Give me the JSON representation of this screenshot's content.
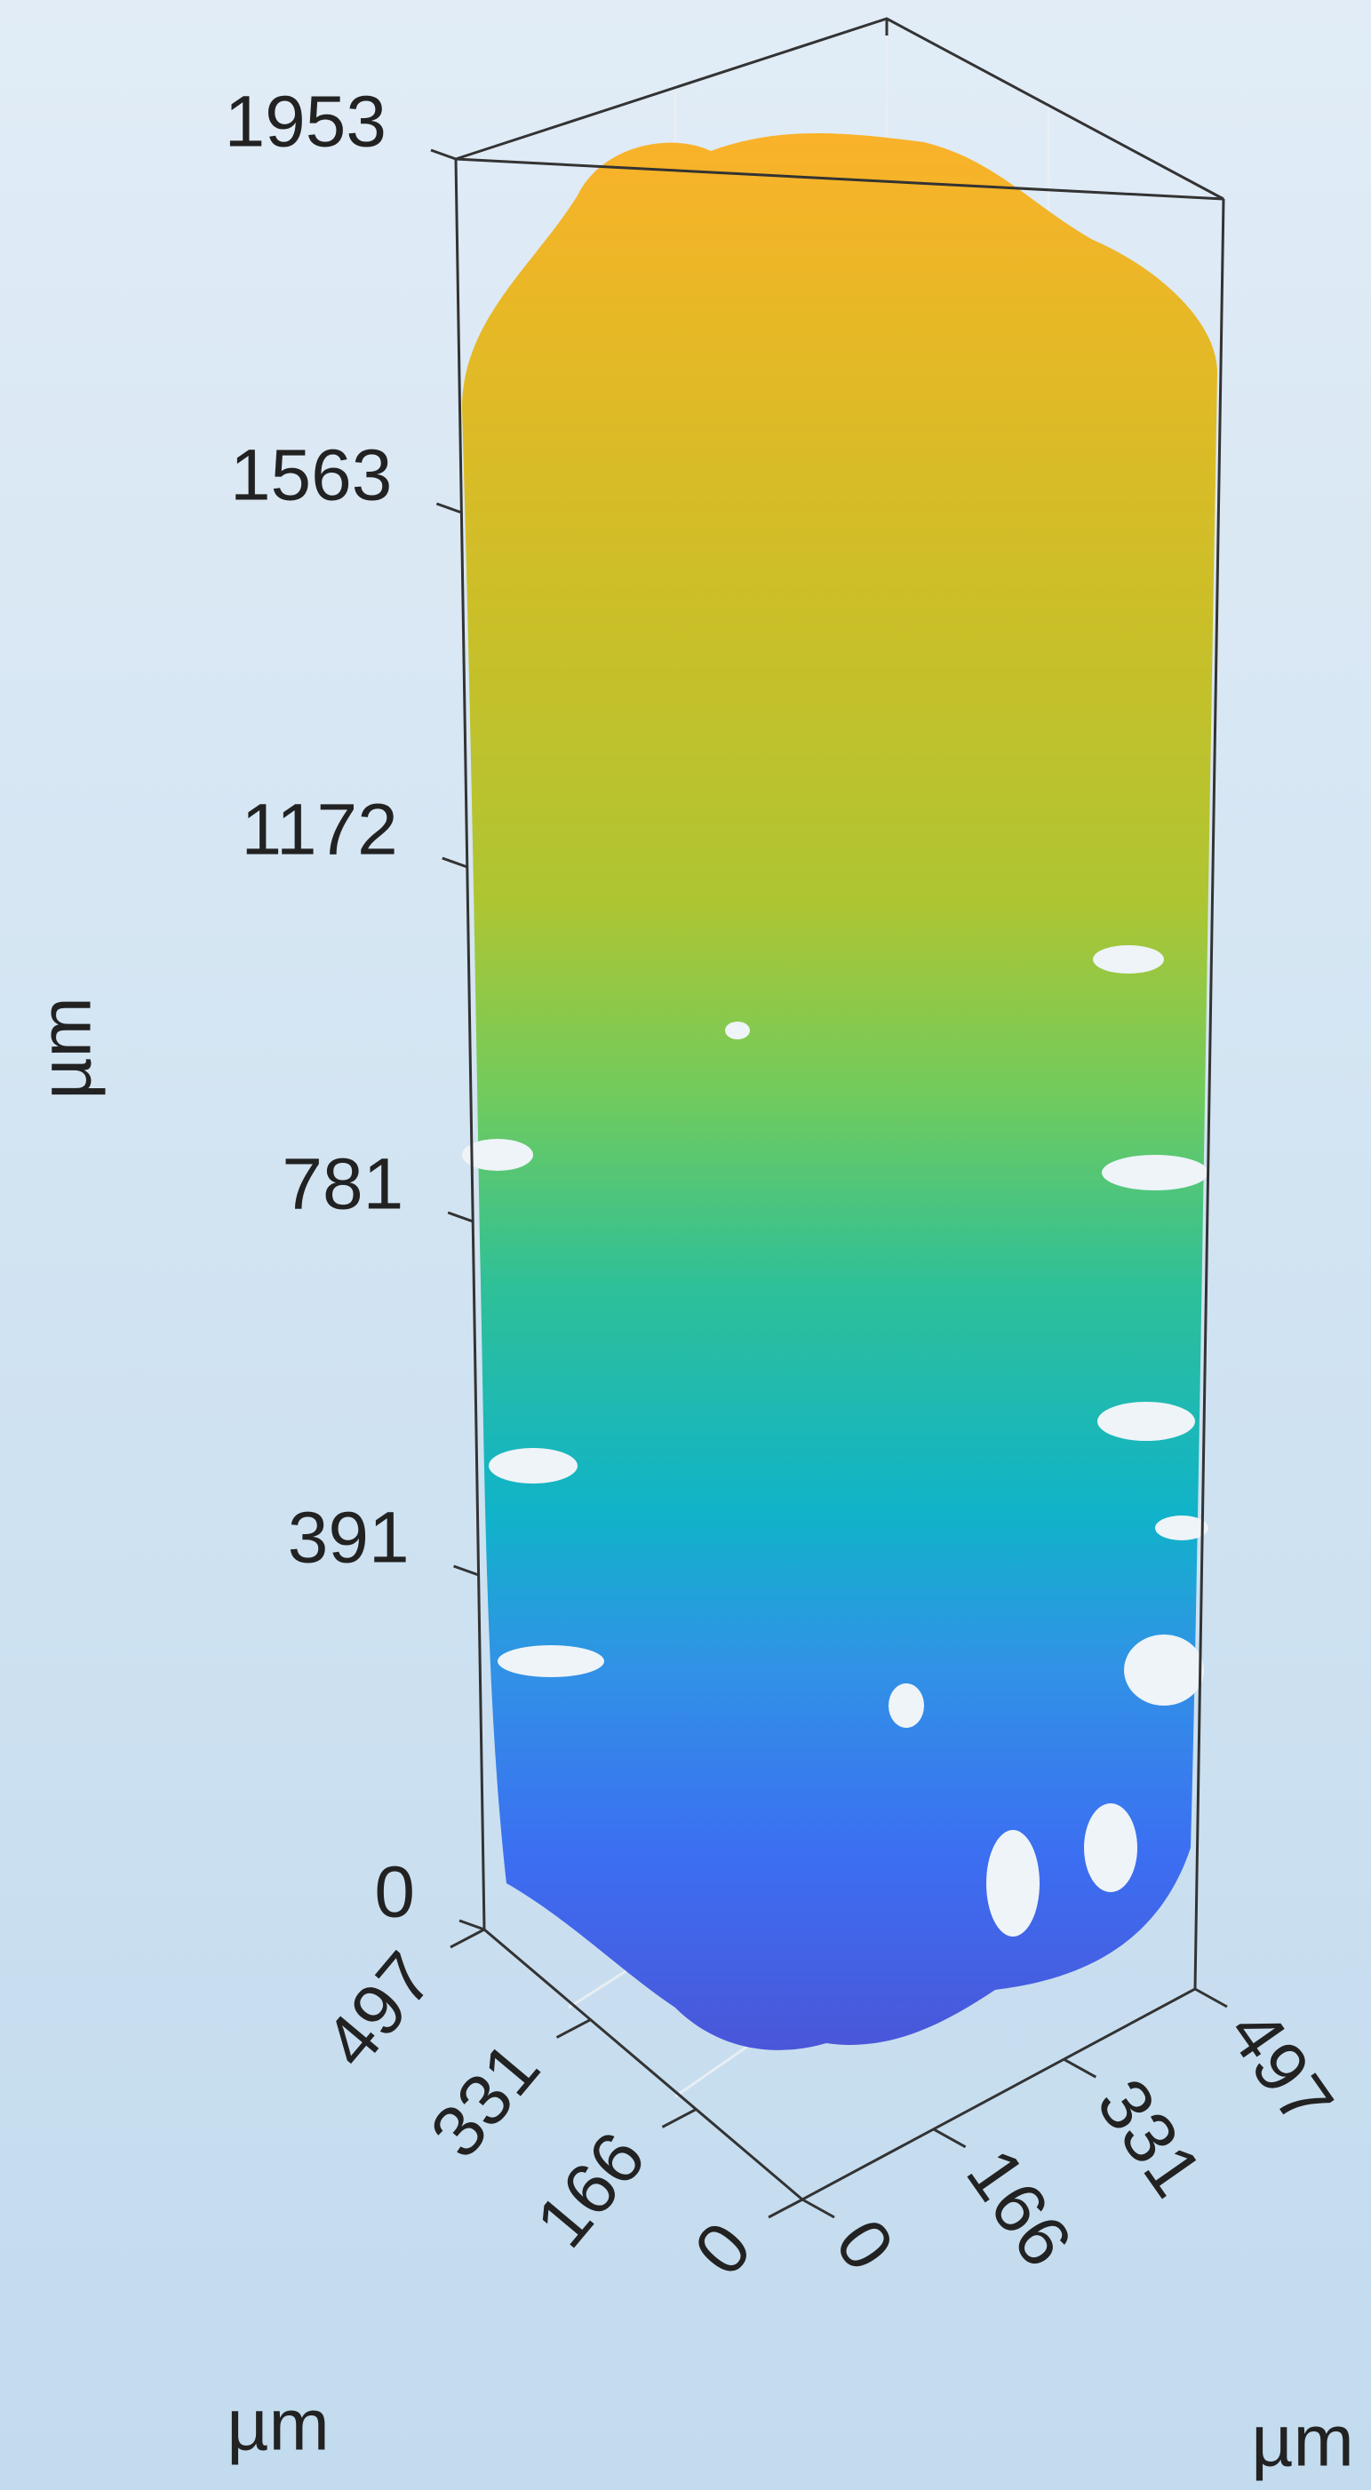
{
  "chart_data": {
    "type": "volume3d",
    "zlabel": "µm",
    "ylabel": "µm",
    "xlabel": "µm",
    "zlim": [
      0,
      1953
    ],
    "zticks": [
      0,
      391,
      781,
      1172,
      1563,
      1953
    ],
    "ylim": [
      0,
      497
    ],
    "yticks": [
      0,
      166,
      331,
      497
    ],
    "xlim": [
      0,
      497
    ],
    "xticks": [
      0,
      166,
      331,
      497
    ]
  }
}
